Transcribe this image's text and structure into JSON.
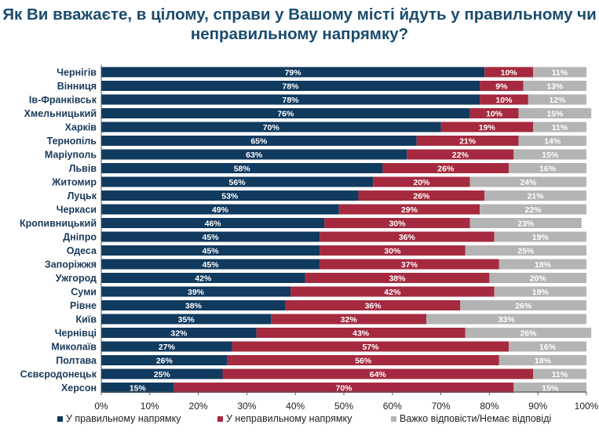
{
  "chart_data": {
    "type": "bar",
    "orientation": "horizontal",
    "stacked": true,
    "title_lines": [
      "Як Ви вважаєте, в цілому, справи у Вашому місті йдуть у правильному чи",
      "неправильному напрямку?"
    ],
    "categories": [
      "Чернігів",
      "Вінниця",
      "Ів-Франківськ",
      "Хмельницький",
      "Харків",
      "Тернопіль",
      "Маріуполь",
      "Львів",
      "Житомир",
      "Луцьк",
      "Черкаси",
      "Кропивницький",
      "Дніпро",
      "Одеса",
      "Запоріжжя",
      "Ужгород",
      "Суми",
      "Рівне",
      "Київ",
      "Чернівці",
      "Миколаїв",
      "Полтава",
      "Сєвєродонецьк",
      "Херсон"
    ],
    "series": [
      {
        "name": "У правильному напрямку",
        "color": "#103a5e",
        "values": [
          79,
          78,
          78,
          76,
          70,
          65,
          63,
          58,
          56,
          53,
          49,
          46,
          45,
          45,
          45,
          42,
          39,
          38,
          35,
          32,
          27,
          26,
          25,
          15
        ]
      },
      {
        "name": "У неправильному напрямку",
        "color": "#a52a3f",
        "values": [
          10,
          9,
          10,
          10,
          19,
          21,
          22,
          26,
          20,
          26,
          29,
          30,
          36,
          30,
          37,
          38,
          42,
          36,
          32,
          43,
          57,
          56,
          64,
          70
        ]
      },
      {
        "name": "Важко відповісти/Немає відповіді",
        "color": "#b4b4b4",
        "values": [
          11,
          13,
          12,
          15,
          11,
          14,
          15,
          16,
          24,
          21,
          22,
          23,
          19,
          25,
          18,
          20,
          19,
          26,
          33,
          26,
          16,
          18,
          11,
          15
        ]
      }
    ],
    "xlim": [
      0,
      100
    ],
    "xticks": [
      "0%",
      "10%",
      "20%",
      "30%",
      "40%",
      "50%",
      "60%",
      "70%",
      "80%",
      "90%",
      "100%"
    ],
    "value_suffix": "%",
    "legend_position": "bottom",
    "grid": false
  }
}
